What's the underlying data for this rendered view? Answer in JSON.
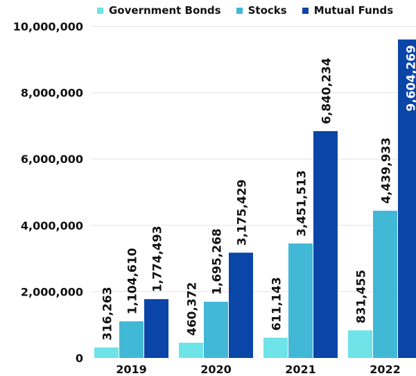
{
  "chart_data": {
    "type": "bar",
    "categories": [
      "2019",
      "2020",
      "2021",
      "2022"
    ],
    "series": [
      {
        "name": "Government Bonds",
        "color": "#6ee3e8",
        "values": [
          316263,
          460372,
          611143,
          831455
        ]
      },
      {
        "name": "Stocks",
        "color": "#41b8d6",
        "values": [
          1104610,
          1695268,
          3451513,
          4439933
        ]
      },
      {
        "name": "Mutual Funds",
        "color": "#0a45a8",
        "values": [
          1774493,
          3175429,
          6840234,
          9604269
        ]
      }
    ],
    "value_labels": [
      [
        "316,263",
        "1,104,610",
        "1,774,493"
      ],
      [
        "460,372",
        "1,695,268",
        "3,175,429"
      ],
      [
        "611,143",
        "3,451,513",
        "6,840,234"
      ],
      [
        "831,455",
        "4,439,933",
        "9,604,269"
      ]
    ],
    "ylim": [
      0,
      10000000
    ],
    "yticks": [
      0,
      2000000,
      4000000,
      6000000,
      8000000,
      10000000
    ],
    "ytick_labels": [
      "0",
      "2,000,000",
      "4,000,000",
      "6,000,000",
      "8,000,000",
      "10,000,000"
    ],
    "grid": true,
    "legend_position": "top"
  }
}
